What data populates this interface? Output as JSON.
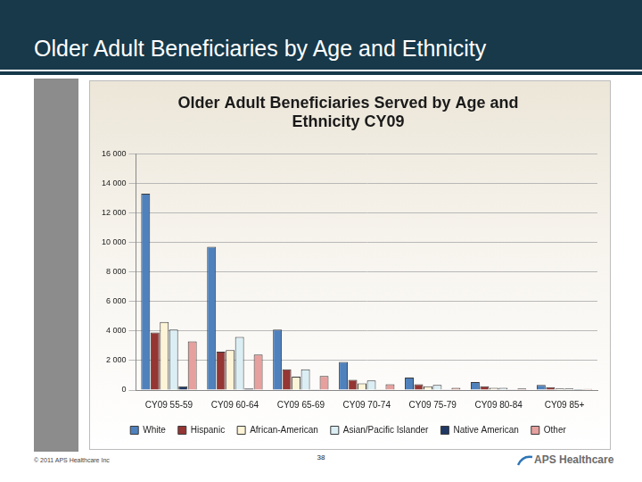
{
  "header": {
    "title": "Older Adult Beneficiaries by Age and Ethnicity"
  },
  "footer": {
    "copyright": "© 2011 APS Healthcare Inc",
    "page": "38",
    "logo": "APS Healthcare"
  },
  "chart_data": {
    "type": "bar",
    "title": "Older Adult Beneficiaries Served by Age and Ethnicity CY09",
    "categories": [
      "CY09 55-59",
      "CY09 60-64",
      "CY09 65-69",
      "CY09 70-74",
      "CY09 75-79",
      "CY09 80-84",
      "CY09 85+"
    ],
    "series": [
      {
        "name": "White",
        "color": "#4f81bd",
        "values": [
          13300,
          9700,
          4100,
          1900,
          850,
          550,
          350
        ]
      },
      {
        "name": "Hispanic",
        "color": "#943634",
        "values": [
          3900,
          2600,
          1400,
          700,
          400,
          250,
          200
        ]
      },
      {
        "name": "African-American",
        "color": "#fdf3d6",
        "values": [
          4600,
          2700,
          900,
          450,
          250,
          150,
          100
        ]
      },
      {
        "name": "Asian/Pacific Islander",
        "color": "#dbeef4",
        "values": [
          4100,
          3600,
          1400,
          650,
          350,
          150,
          100
        ]
      },
      {
        "name": "Native American",
        "color": "#1f3864",
        "values": [
          250,
          100,
          50,
          20,
          10,
          10,
          5
        ]
      },
      {
        "name": "Other",
        "color": "#e6a09e",
        "values": [
          3300,
          2400,
          950,
          400,
          150,
          100,
          80
        ]
      }
    ],
    "ylim": [
      0,
      16000
    ],
    "yticks": [
      0,
      {
        "value": 2000,
        "label": "2 000"
      },
      {
        "value": 4000,
        "label": "4 000"
      },
      {
        "value": 6000,
        "label": "6 000"
      },
      {
        "value": 8000,
        "label": "8 000"
      },
      {
        "value": 10000,
        "label": "10 000"
      },
      {
        "value": 12000,
        "label": "12 000"
      },
      {
        "value": 14000,
        "label": "14 000"
      },
      {
        "value": 16000,
        "label": "16 000"
      }
    ],
    "grid": true,
    "legend": "bottom"
  }
}
